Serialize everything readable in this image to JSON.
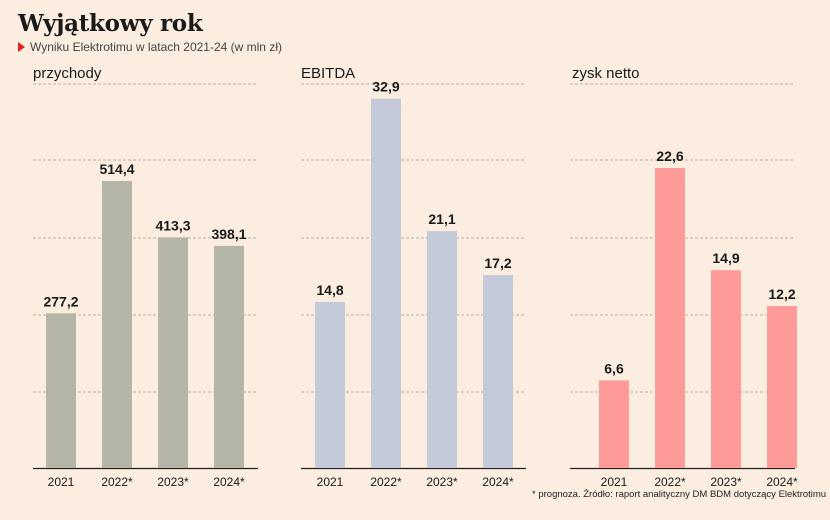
{
  "header": {
    "title": "Wyjątkowy rok",
    "subtitle": "Wyniku Elektrotimu w latach 2021-24 (w mln zł)"
  },
  "footnote": "* prognoza. Źródło: raport analityczny DM BDM dotyczący Elektrotimu",
  "colors": {
    "background": "#fbeee1",
    "przychody": "#b5b5a8",
    "ebitda": "#c4cad9",
    "zysk": "#fe9a98",
    "marker": "#e2231a"
  },
  "chart_data": [
    {
      "type": "bar",
      "title": "przychody",
      "categories": [
        "2021",
        "2022*",
        "2023*",
        "2024*"
      ],
      "values": [
        277.2,
        514.4,
        413.3,
        398.1
      ],
      "value_labels": [
        "277,2",
        "514,4",
        "413,3",
        "398,1"
      ],
      "ylim": [
        0,
        690
      ],
      "grid": true
    },
    {
      "type": "bar",
      "title": "EBITDA",
      "categories": [
        "2021",
        "2022*",
        "2023*",
        "2024*"
      ],
      "values": [
        14.8,
        32.9,
        21.1,
        17.2
      ],
      "value_labels": [
        "14,8",
        "32,9",
        "21,1",
        "17,2"
      ],
      "ylim": [
        0,
        34.3
      ],
      "grid": true
    },
    {
      "type": "bar",
      "title": "zysk netto",
      "categories": [
        "2021",
        "2022*",
        "2023*",
        "2024*"
      ],
      "values": [
        6.6,
        22.6,
        14.9,
        12.2
      ],
      "value_labels": [
        "6,6",
        "22,6",
        "14,9",
        "12,2"
      ],
      "ylim": [
        0,
        29.0
      ],
      "grid": true
    }
  ]
}
